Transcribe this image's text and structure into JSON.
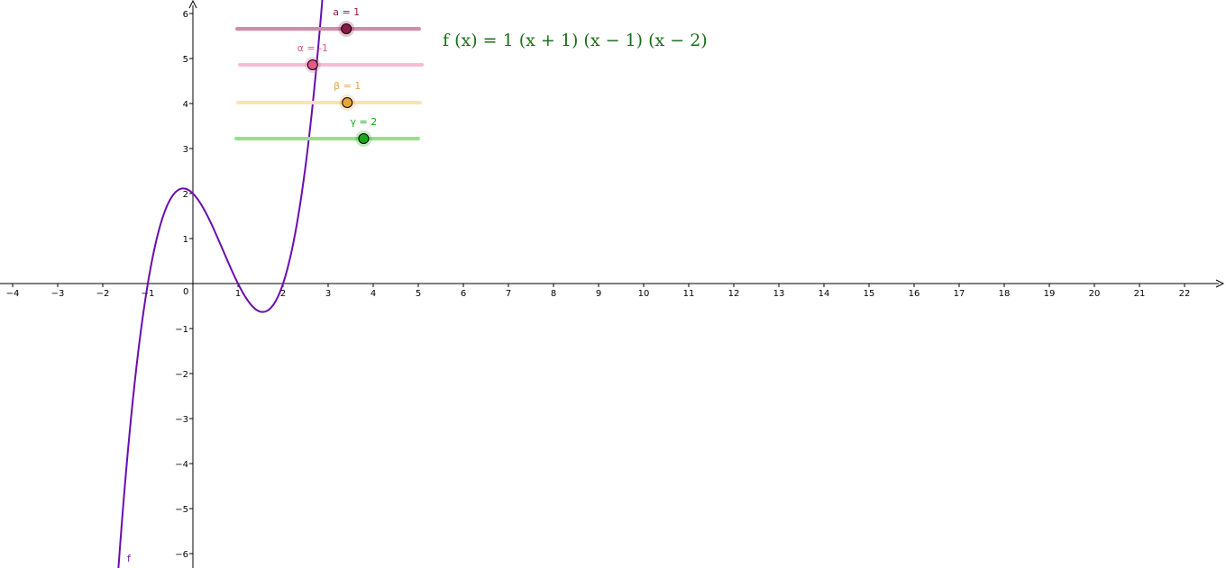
{
  "graph": {
    "x_tick_labels": [
      "−4",
      "−3",
      "−2",
      "−1",
      "1",
      "2",
      "3",
      "4",
      "5",
      "6",
      "7",
      "8",
      "9",
      "10",
      "11",
      "12",
      "13",
      "14",
      "15",
      "16",
      "17",
      "18",
      "19",
      "20",
      "21",
      "22"
    ],
    "y_tick_labels": [
      "6",
      "5",
      "4",
      "3",
      "2",
      "1",
      "−1",
      "−2",
      "−3",
      "−4",
      "−5",
      "−6"
    ],
    "origin_label": "0",
    "axis_color": "#000000",
    "curve_color": "#6a0dad",
    "curve_label": "f"
  },
  "sliders": [
    {
      "label": "a = 1",
      "color": "#8b1a4a",
      "track_color": "#d28ba8",
      "value": 1,
      "min": -5,
      "max": 5
    },
    {
      "label": "α = -1",
      "color": "#e05a8a",
      "track_color": "#f7bcd3",
      "value": -1,
      "min": -5,
      "max": 5
    },
    {
      "label": "β = 1",
      "color": "#e8a53a",
      "track_color": "#fde2b5",
      "value": 1,
      "min": -5,
      "max": 5
    },
    {
      "label": "γ = 2",
      "color": "#1aa81a",
      "track_color": "#94e08f",
      "value": 2,
      "min": -5,
      "max": 5
    }
  ],
  "formula": {
    "text": "f (x)  =  1  (x + 1)  (x − 1)  (x − 2)",
    "color": "#1b6f1b"
  }
}
